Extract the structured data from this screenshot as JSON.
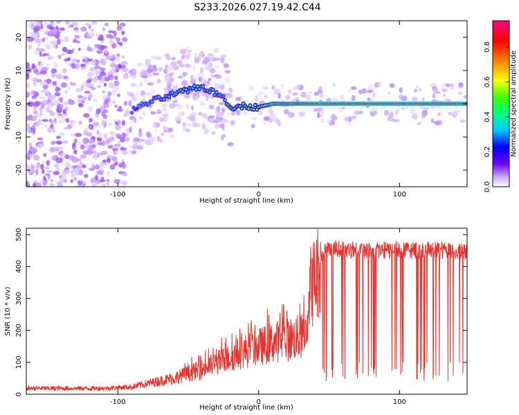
{
  "figure": {
    "title": "S233.2026.027.19.42.C44"
  },
  "chart_data": [
    {
      "type": "heatmap",
      "xlabel": "Height of straight line (km)",
      "ylabel": "Frequency (Hz)",
      "xlim": [
        -165,
        148
      ],
      "ylim": [
        -25,
        25
      ],
      "x_ticks": [
        -100,
        0,
        100
      ],
      "x_tick_labels": [
        "-100",
        "0",
        "100"
      ],
      "y_ticks": [
        -20,
        -10,
        0,
        10,
        20
      ],
      "y_tick_labels": [
        "-20",
        "-10",
        "0",
        "10",
        "20"
      ],
      "grid": false,
      "colorbar": {
        "label": "Normalized spectral amplitude",
        "range": [
          0,
          0.95
        ],
        "ticks": [
          0,
          0.2,
          0.4,
          0.6,
          0.8
        ],
        "tick_labels": [
          "0.0",
          "0.2",
          "0.4",
          "0.6",
          "0.8"
        ],
        "colors": [
          "#ffffff",
          "#c9a6ff",
          "#6a00ff",
          "#0000ff",
          "#00c8ff",
          "#00ff80",
          "#40ff00",
          "#ffff00",
          "#ff8000",
          "#ff0000",
          "#ff0080"
        ]
      },
      "ridge": {
        "x": [
          -90,
          -85,
          -80,
          -75,
          -70,
          -65,
          -60,
          -55,
          -50,
          -45,
          -40,
          -35,
          -30,
          -25,
          -22,
          -20,
          -15,
          -10,
          -5,
          0,
          5,
          10,
          20,
          40,
          60,
          80,
          100,
          120,
          148
        ],
        "frequency": [
          -2,
          -1,
          0,
          1,
          1.5,
          2,
          3,
          3.5,
          4,
          5,
          5,
          4,
          3,
          2,
          0,
          -1,
          -1,
          -0.5,
          -1,
          -1,
          -0.5,
          0,
          0,
          0,
          0,
          0,
          0,
          0,
          0
        ],
        "amplitude": [
          0.3,
          0.35,
          0.4,
          0.4,
          0.45,
          0.45,
          0.5,
          0.5,
          0.5,
          0.5,
          0.45,
          0.45,
          0.45,
          0.4,
          0.5,
          0.5,
          0.55,
          0.55,
          0.6,
          0.65,
          0.7,
          0.75,
          0.8,
          0.85,
          0.85,
          0.9,
          0.9,
          0.9,
          0.9
        ]
      }
    },
    {
      "type": "line",
      "xlabel": "Height of straight line (km)",
      "ylabel": "SNR (10 * v/v)",
      "xlim": [
        -165,
        148
      ],
      "ylim": [
        0,
        520
      ],
      "x_ticks": [
        -100,
        0,
        100
      ],
      "x_tick_labels": [
        "-100",
        "0",
        "100"
      ],
      "y_ticks": [
        0,
        100,
        200,
        300,
        400,
        500
      ],
      "y_tick_labels": [
        "0",
        "100",
        "200",
        "300",
        "400",
        "500"
      ],
      "grid": false,
      "series": [
        {
          "color": "#e8322e",
          "envelope": {
            "x": [
              -165,
              -140,
              -110,
              -90,
              -80,
              -70,
              -60,
              -50,
              -40,
              -30,
              -20,
              -10,
              0,
              10,
              20,
              30,
              33,
              36,
              40,
              44,
              50,
              60,
              80,
              100,
              120,
              148
            ],
            "y": [
              20,
              20,
              20,
              25,
              35,
              45,
              55,
              70,
              85,
              105,
              125,
              145,
              160,
              175,
              185,
              195,
              200,
              360,
              390,
              440,
              460,
              460,
              455,
              455,
              455,
              450
            ]
          }
        }
      ]
    }
  ]
}
